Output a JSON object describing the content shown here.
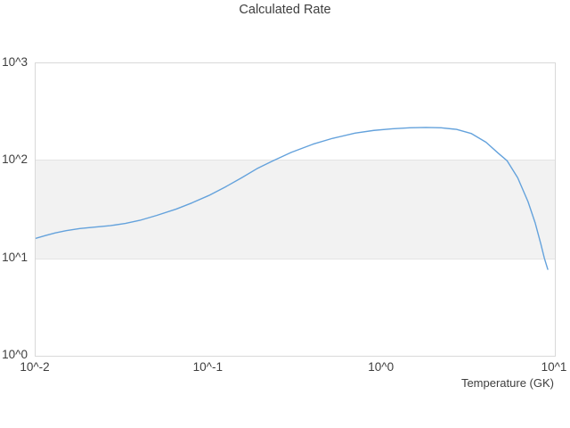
{
  "chart_data": {
    "type": "line",
    "title": "Calculated Rate",
    "xlabel": "Temperature (GK)",
    "ylabel": "",
    "x_scale": "log",
    "y_scale": "log",
    "xlim": [
      0.01,
      10
    ],
    "ylim": [
      1,
      1000
    ],
    "x_ticks": {
      "values": [
        0.01,
        0.1,
        1,
        10
      ],
      "labels": [
        "10^-2",
        "10^-1",
        "10^0",
        "10^1"
      ]
    },
    "y_ticks": {
      "values": [
        1,
        10,
        100,
        1000
      ],
      "labels": [
        "10^0",
        "10^1",
        "10^2",
        "10^3"
      ]
    },
    "grid": "off",
    "legend": "none",
    "band": {
      "y_from": 10,
      "y_to": 100,
      "fill": "#f2f2f2",
      "edge_color": "#e4e4e4"
    },
    "colors": {
      "line": "#64a2dc",
      "text": "#3e3e3e",
      "frame": "#d9d9d9",
      "background": "#ffffff"
    },
    "series": [
      {
        "name": "calculated-rate",
        "x": [
          0.01,
          0.0115,
          0.013,
          0.015,
          0.018,
          0.022,
          0.027,
          0.033,
          0.04,
          0.05,
          0.065,
          0.08,
          0.1,
          0.125,
          0.155,
          0.19,
          0.235,
          0.3,
          0.4,
          0.52,
          0.7,
          0.9,
          1.15,
          1.45,
          1.8,
          2.2,
          2.7,
          3.3,
          4.0,
          4.7,
          5.3,
          6.1,
          7.0,
          7.7,
          8.3,
          8.7,
          9.1
        ],
        "y": [
          16.0,
          17.2,
          18.2,
          19.2,
          20.2,
          20.9,
          21.6,
          22.8,
          24.5,
          27.5,
          32,
          37,
          44,
          54,
          67,
          83,
          100,
          122,
          148,
          170,
          192,
          205,
          213,
          218,
          220,
          218,
          210,
          190,
          155,
          120,
          100,
          67,
          38,
          23,
          14,
          10,
          7.7
        ]
      }
    ]
  }
}
